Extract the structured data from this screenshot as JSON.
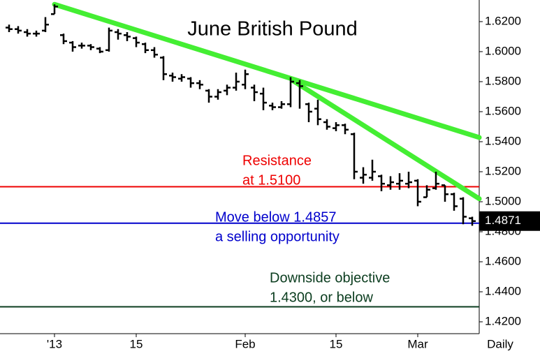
{
  "chart_data": {
    "type": "ohlc",
    "title": "June British Pound",
    "categories": [
      null,
      null,
      null,
      null,
      null,
      "'13",
      null,
      null,
      null,
      null,
      null,
      null,
      null,
      null,
      "15",
      null,
      null,
      null,
      null,
      null,
      null,
      null,
      null,
      null,
      null,
      null,
      "Feb",
      null,
      null,
      null,
      null,
      null,
      null,
      null,
      null,
      null,
      "15",
      null,
      null,
      null,
      null,
      null,
      null,
      null,
      null,
      "Mar",
      null,
      null,
      null,
      null,
      null,
      null
    ],
    "open": [
      1.616,
      1.615,
      1.613,
      1.612,
      1.614,
      1.625,
      1.611,
      1.606,
      1.604,
      1.604,
      1.602,
      1.601,
      1.613,
      1.611,
      1.609,
      1.605,
      1.601,
      1.596,
      1.584,
      1.582,
      1.582,
      1.579,
      1.574,
      1.57,
      1.574,
      1.576,
      1.578,
      1.576,
      1.572,
      1.564,
      1.563,
      1.565,
      1.579,
      1.565,
      1.562,
      1.553,
      1.549,
      1.551,
      1.545,
      1.516,
      1.516,
      1.517,
      1.511,
      1.512,
      1.512,
      1.514,
      1.503,
      1.509,
      1.511,
      1.505,
      1.502,
      1.489
    ],
    "high": [
      1.618,
      1.617,
      1.615,
      1.614,
      1.623,
      1.6315,
      1.612,
      1.607,
      1.606,
      1.605,
      1.603,
      1.616,
      1.615,
      1.613,
      1.61,
      1.606,
      1.603,
      1.597,
      1.586,
      1.585,
      1.583,
      1.581,
      1.575,
      1.575,
      1.578,
      1.586,
      1.588,
      1.578,
      1.576,
      1.566,
      1.567,
      1.583,
      1.581,
      1.566,
      1.568,
      1.555,
      1.553,
      1.552,
      1.546,
      1.523,
      1.528,
      1.518,
      1.517,
      1.519,
      1.52,
      1.515,
      1.511,
      1.52,
      1.511,
      1.506,
      1.503,
      1.49
    ],
    "low": [
      1.613,
      1.612,
      1.61,
      1.61,
      1.613,
      1.625,
      1.605,
      1.6,
      1.602,
      1.601,
      1.599,
      1.6,
      1.608,
      1.607,
      1.603,
      1.599,
      1.596,
      1.581,
      1.58,
      1.58,
      1.576,
      1.575,
      1.566,
      1.568,
      1.571,
      1.574,
      1.575,
      1.567,
      1.561,
      1.561,
      1.562,
      1.563,
      1.562,
      1.553,
      1.551,
      1.548,
      1.547,
      1.545,
      1.515,
      1.512,
      1.514,
      1.507,
      1.508,
      1.508,
      1.509,
      1.497,
      1.503,
      1.508,
      1.5,
      1.494,
      1.485,
      1.484
    ],
    "close": [
      1.615,
      1.614,
      1.612,
      1.612,
      1.618,
      1.63,
      1.607,
      1.603,
      1.604,
      1.603,
      1.6,
      1.614,
      1.612,
      1.61,
      1.606,
      1.601,
      1.598,
      1.585,
      1.583,
      1.583,
      1.579,
      1.578,
      1.57,
      1.573,
      1.576,
      1.58,
      1.585,
      1.573,
      1.566,
      1.563,
      1.565,
      1.58,
      1.577,
      1.56,
      1.555,
      1.55,
      1.551,
      1.548,
      1.52,
      1.518,
      1.52,
      1.512,
      1.513,
      1.514,
      1.513,
      1.5,
      1.508,
      1.512,
      1.505,
      1.497,
      1.49,
      1.4871
    ],
    "color": "#000000",
    "x_label": "Daily",
    "last_price": 1.4871,
    "ylim": [
      1.4121,
      1.6344
    ],
    "yticks": [
      {
        "value": 1.42,
        "label": "1.4200"
      },
      {
        "value": 1.44,
        "label": "1.4400"
      },
      {
        "value": 1.46,
        "label": "1.4600"
      },
      {
        "value": 1.48,
        "label": "1.4800"
      },
      {
        "value": 1.5,
        "label": "1.5000"
      },
      {
        "value": 1.52,
        "label": "1.5200"
      },
      {
        "value": 1.54,
        "label": "1.5400"
      },
      {
        "value": 1.56,
        "label": "1.5600"
      },
      {
        "value": 1.58,
        "label": "1.5800"
      },
      {
        "value": 1.6,
        "label": "1.6000"
      },
      {
        "value": 1.62,
        "label": "1.6200"
      }
    ],
    "trendlines": [
      {
        "color": "#44ee33",
        "x": [
          5,
          51.77
        ],
        "y": [
          1.6315,
          1.5428
        ]
      },
      {
        "color": "#44ee33",
        "x": [
          31.3,
          51.77
        ],
        "y": [
          1.5805,
          1.502
        ]
      }
    ],
    "hlines": [
      {
        "value": 1.51,
        "color": "#ee0000"
      },
      {
        "value": 1.4857,
        "color": "#0000cc"
      },
      {
        "value": 1.43,
        "color": "#0b3d1f"
      }
    ],
    "annotations": [
      {
        "text": [
          "Resistance",
          "at 1.5100"
        ],
        "color": "#ee0000"
      },
      {
        "text": [
          "Move below 1.4857",
          "a selling opportunity"
        ],
        "color": "#0000cc"
      },
      {
        "text": [
          "Downside objective",
          "1.4300, or below"
        ],
        "color": "#0b3d1f"
      }
    ]
  }
}
